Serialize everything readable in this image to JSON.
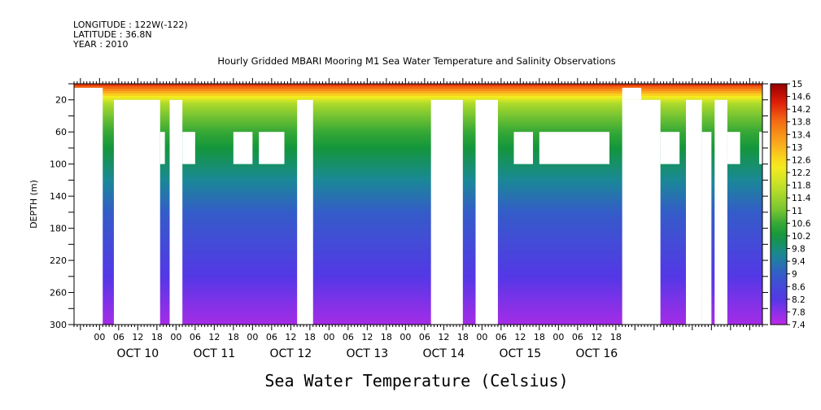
{
  "header": {
    "longitude": "LONGITUDE : 122W(-122)",
    "latitude": "LATITUDE : 36.8N",
    "year": "YEAR : 2010"
  },
  "chart_data": {
    "type": "heatmap",
    "title": "Hourly Gridded MBARI Mooring M1 Sea Water Temperature and Salinity Observations",
    "variable_label": "Sea Water Temperature (Celsius)",
    "ylabel": "DEPTH (m)",
    "y_axis": {
      "range": [
        0,
        300
      ],
      "inverted": true,
      "ticks": [
        20,
        60,
        100,
        140,
        180,
        220,
        260,
        300
      ]
    },
    "x_axis": {
      "range_hours": [
        -8,
        208
      ],
      "hour_ticks": [
        "00",
        "06",
        "12",
        "18",
        "00",
        "06",
        "12",
        "18",
        "00",
        "06",
        "12",
        "18",
        "00",
        "06",
        "12",
        "18",
        "00",
        "06",
        "12",
        "18",
        "00",
        "06",
        "12",
        "18",
        "00",
        "06",
        "12",
        "18"
      ],
      "day_labels": [
        "OCT 10",
        "OCT 11",
        "OCT 12",
        "OCT 13",
        "OCT 14",
        "OCT 15",
        "OCT 16"
      ]
    },
    "colorbar": {
      "levels": [
        15,
        14.6,
        14.2,
        13.8,
        13.4,
        13,
        12.6,
        12.2,
        11.8,
        11.4,
        11,
        10.6,
        10.2,
        9.8,
        9.4,
        9,
        8.6,
        8.2,
        7.8,
        7.4
      ],
      "range": [
        7.4,
        15
      ]
    },
    "temperature_profile": {
      "depth": [
        2,
        8,
        16,
        24,
        40,
        60,
        80,
        100,
        120,
        140,
        160,
        180,
        200,
        220,
        240,
        260,
        280,
        300
      ],
      "temp": [
        14.2,
        13.4,
        12.4,
        11.6,
        11.0,
        10.6,
        10.2,
        9.9,
        9.6,
        9.3,
        9.0,
        8.8,
        8.6,
        8.4,
        8.2,
        8.0,
        7.8,
        7.6
      ]
    },
    "missing_data": [
      {
        "x0": -8,
        "x1": 1,
        "d0": 5,
        "d1": 300
      },
      {
        "x0": 4.5,
        "x1": 19,
        "d0": 20,
        "d1": 300
      },
      {
        "x0": 19,
        "x1": 20.5,
        "d0": 60,
        "d1": 100
      },
      {
        "x0": 22,
        "x1": 26,
        "d0": 20,
        "d1": 300
      },
      {
        "x0": 26,
        "x1": 30,
        "d0": 60,
        "d1": 100
      },
      {
        "x0": 42,
        "x1": 48,
        "d0": 60,
        "d1": 100
      },
      {
        "x0": 50,
        "x1": 58,
        "d0": 60,
        "d1": 100
      },
      {
        "x0": 62,
        "x1": 67,
        "d0": 20,
        "d1": 300
      },
      {
        "x0": 104,
        "x1": 114,
        "d0": 20,
        "d1": 300
      },
      {
        "x0": 118,
        "x1": 125,
        "d0": 20,
        "d1": 300
      },
      {
        "x0": 130,
        "x1": 136,
        "d0": 60,
        "d1": 100
      },
      {
        "x0": 138,
        "x1": 160,
        "d0": 60,
        "d1": 100
      },
      {
        "x0": 164,
        "x1": 170,
        "d0": 5,
        "d1": 20
      },
      {
        "x0": 164,
        "x1": 176,
        "d0": 20,
        "d1": 300
      },
      {
        "x0": 176,
        "x1": 182,
        "d0": 60,
        "d1": 100
      },
      {
        "x0": 184,
        "x1": 189,
        "d0": 20,
        "d1": 300
      },
      {
        "x0": 189,
        "x1": 192,
        "d0": 60,
        "d1": 300
      },
      {
        "x0": 193,
        "x1": 197,
        "d0": 20,
        "d1": 300
      },
      {
        "x0": 197,
        "x1": 201,
        "d0": 60,
        "d1": 100
      },
      {
        "x0": 207,
        "x1": 208,
        "d0": 60,
        "d1": 100
      }
    ]
  }
}
